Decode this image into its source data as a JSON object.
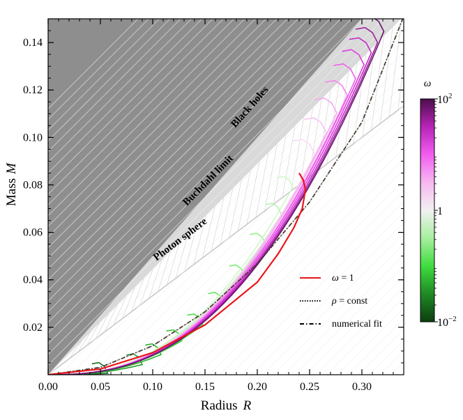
{
  "chart_data": {
    "type": "line",
    "xlabel": "Radius",
    "xlabel_var": "R",
    "ylabel": "Mass",
    "ylabel_var": "M",
    "xlim": [
      0.0,
      0.34
    ],
    "ylim": [
      0.0,
      0.15
    ],
    "xticks": [
      "0.00",
      "0.05",
      "0.10",
      "0.15",
      "0.20",
      "0.25",
      "0.30"
    ],
    "xtick_values": [
      0.0,
      0.05,
      0.1,
      0.15,
      0.2,
      0.25,
      0.3
    ],
    "yticks": [
      "0.02",
      "0.04",
      "0.06",
      "0.08",
      "0.10",
      "0.12",
      "0.14"
    ],
    "ytick_values": [
      0.02,
      0.04,
      0.06,
      0.08,
      0.1,
      0.12,
      0.14
    ],
    "regions": [
      {
        "label": "Black holes",
        "boundary": "M = R/2"
      },
      {
        "label": "Buchdahl limit",
        "boundary": "M = 4R/9"
      },
      {
        "label": "Photon sphere",
        "boundary": "M = R/3"
      }
    ],
    "colorbar": {
      "label": "ω",
      "scale": "log",
      "range": [
        0.01,
        100
      ],
      "tick_labels": [
        {
          "base": "10",
          "exp": "2"
        },
        {
          "base": "1",
          "exp": ""
        },
        {
          "base": "10",
          "exp": "−2"
        }
      ],
      "colors": [
        "#0c3d10",
        "#1f8a24",
        "#3fdc3f",
        "#a6ef9e",
        "#f1f1f1",
        "#f7b8f1",
        "#f25ef0",
        "#b823b8",
        "#4b0f4b"
      ]
    },
    "legend": {
      "position": "lower-right",
      "entries": [
        {
          "style": "solid",
          "color": "#e8151b",
          "var": "ω",
          "rest": " = 1"
        },
        {
          "style": "dotted",
          "color": "#000000",
          "var": "ρ",
          "rest": " = const"
        },
        {
          "style": "dashdot",
          "color": "#000000",
          "var": "",
          "rest": "numerical fit"
        }
      ]
    },
    "series": [
      {
        "color": "#e8151b",
        "values": [
          [
            0.0,
            0.0
          ],
          [
            0.05,
            0.0024
          ],
          [
            0.1,
            0.0093
          ],
          [
            0.15,
            0.021
          ],
          [
            0.2,
            0.039
          ],
          [
            0.22,
            0.051
          ],
          [
            0.235,
            0.062
          ],
          [
            0.243,
            0.07
          ],
          [
            0.246,
            0.078
          ],
          [
            0.244,
            0.082
          ],
          [
            0.24,
            0.085
          ]
        ]
      },
      {
        "color": "#000000",
        "values": [
          [
            0.0,
            0.0
          ],
          [
            0.05,
            0.0031
          ],
          [
            0.1,
            0.0122
          ],
          [
            0.15,
            0.0265
          ],
          [
            0.2,
            0.0468
          ],
          [
            0.25,
            0.0728
          ],
          [
            0.3,
            0.1064
          ],
          [
            0.34,
            0.1511
          ]
        ]
      }
    ],
    "curve_family": {
      "peaks_low_omega": [
        [
          0.057,
          0.0006
        ],
        [
          0.09,
          0.0043
        ],
        [
          0.108,
          0.0085
        ],
        [
          0.128,
          0.0144
        ],
        [
          0.148,
          0.0211
        ],
        [
          0.168,
          0.0302
        ],
        [
          0.188,
          0.0418
        ],
        [
          0.208,
          0.0551
        ],
        [
          0.223,
          0.0677
        ],
        [
          0.234,
          0.079
        ]
      ],
      "peaks_high_omega": [
        [
          0.255,
          0.0929
        ],
        [
          0.266,
          0.102
        ],
        [
          0.276,
          0.1103
        ],
        [
          0.286,
          0.1177
        ],
        [
          0.294,
          0.1247
        ],
        [
          0.302,
          0.1307
        ],
        [
          0.309,
          0.1357
        ],
        [
          0.315,
          0.14
        ],
        [
          0.321,
          0.1447
        ]
      ],
      "omega_low_colors": [
        "#176f1d",
        "#219a27",
        "#27b52d",
        "#32cf35",
        "#44de44",
        "#5ee55a",
        "#7aeb72",
        "#97f08f",
        "#b5f4ac",
        "#cff7c9"
      ],
      "omega_high_colors": [
        "#f8dcf6",
        "#f7c4f3",
        "#f6a7f1",
        "#f484ee",
        "#f060ec",
        "#e03ee0",
        "#c42bc5",
        "#9b219c",
        "#6b176c"
      ]
    }
  }
}
